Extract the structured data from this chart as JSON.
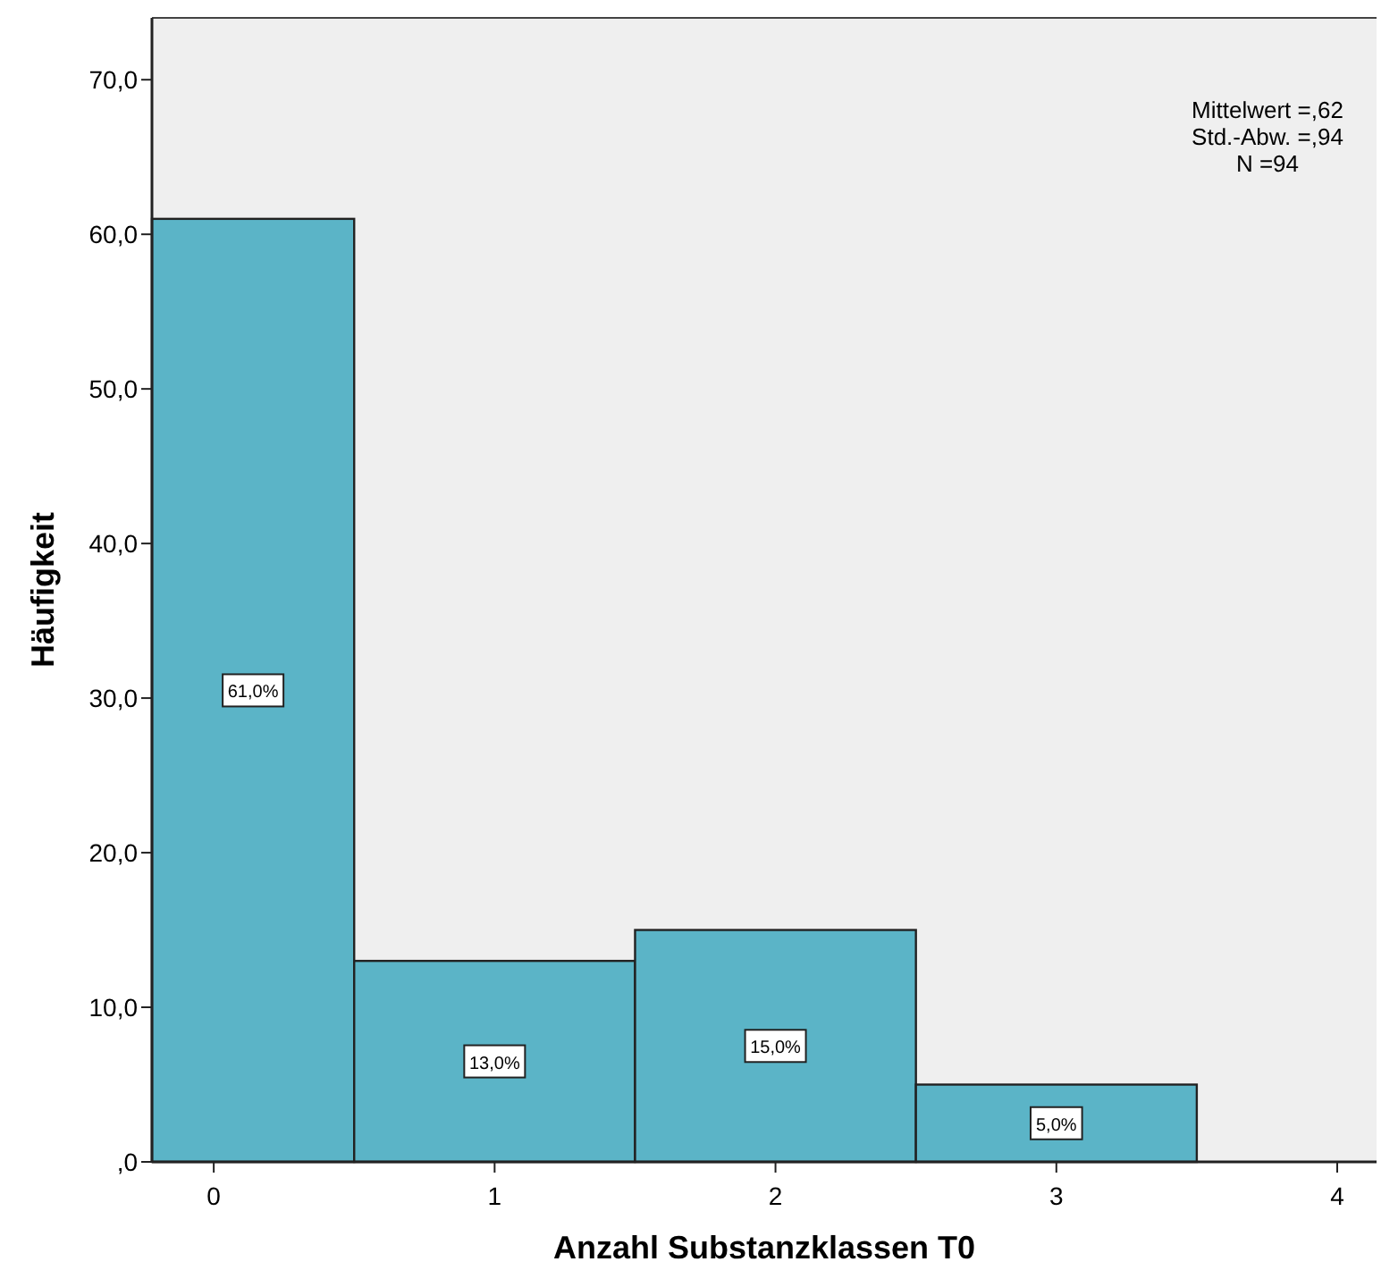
{
  "chart_data": {
    "type": "histogram",
    "xlabel": "Anzahl Substanzklassen T0",
    "ylabel": "Häufigkeit",
    "bins": [
      -0.22,
      0.5,
      1.5,
      2.5,
      3.5
    ],
    "values": [
      61,
      13,
      15,
      5
    ],
    "value_labels": [
      "61,0%",
      "13,0%",
      "15,0%",
      "5,0%"
    ],
    "color": "#5bb4c7",
    "xlim": [
      -0.22,
      4.14
    ],
    "xticks": [
      0,
      1,
      2,
      3,
      4
    ],
    "ylim": [
      0,
      74
    ],
    "yticks": [
      {
        "value": 0,
        "label": ",0"
      },
      {
        "value": 10,
        "label": "10,0"
      },
      {
        "value": 20,
        "label": "20,0"
      },
      {
        "value": 30,
        "label": "30,0"
      },
      {
        "value": 40,
        "label": "40,0"
      },
      {
        "value": 50,
        "label": "50,0"
      },
      {
        "value": 60,
        "label": "60,0"
      },
      {
        "value": 70,
        "label": "70,0"
      }
    ],
    "annotations": [
      "Mittelwert =,62",
      "Std.-Abw. =,94",
      "N =94"
    ]
  }
}
